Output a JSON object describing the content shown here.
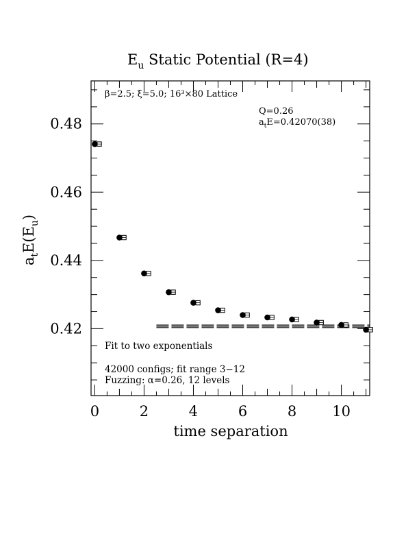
{
  "chart_data": {
    "type": "scatter",
    "title": "E_u Static Potential (R=4)",
    "title_main": "E",
    "title_sub": "u",
    "title_rest": " Static Potential (R=4)",
    "xlabel": "time separation",
    "ylabel": "a_t E(E_u)",
    "ylabel_parts": {
      "a": "a",
      "t": "t",
      "E": "E(E",
      "u": "u",
      "close": ")"
    },
    "xlim": [
      -0.15,
      11.15
    ],
    "ylim": [
      0.4004,
      0.4926
    ],
    "xticks": [
      0,
      2,
      4,
      6,
      8,
      10
    ],
    "xtick_labels": [
      "0",
      "2",
      "4",
      "6",
      "8",
      "10"
    ],
    "yticks": [
      0.42,
      0.44,
      0.46,
      0.48
    ],
    "ytick_labels": [
      "0.42",
      "0.44",
      "0.46",
      "0.48"
    ],
    "grid": false,
    "series": [
      {
        "marker": "filled-circle",
        "x": [
          0,
          1,
          2,
          3,
          4,
          5,
          6,
          7,
          8,
          9,
          10,
          11
        ],
        "y": [
          0.4741,
          0.4467,
          0.4362,
          0.4307,
          0.4276,
          0.4254,
          0.424,
          0.4233,
          0.4227,
          0.4218,
          0.4211,
          0.4197
        ]
      },
      {
        "marker": "open-square",
        "x": [
          0.1,
          1.1,
          2.1,
          3.1,
          4.1,
          5.1,
          6.1,
          7.1,
          8.1,
          9.1,
          10.1,
          11.1
        ],
        "y": [
          0.4741,
          0.4467,
          0.4362,
          0.4307,
          0.4276,
          0.4254,
          0.424,
          0.4233,
          0.4227,
          0.4218,
          0.4211,
          0.4197
        ]
      }
    ],
    "fit": {
      "x_range": [
        2.5,
        11.15
      ],
      "value": 0.4207,
      "error": 0.00038
    },
    "annotations": {
      "lattice": "β=2.5; ξ=5.0; 16³×80 Lattice",
      "q_value": "Q=0.26",
      "energy_prefix": "a",
      "energy_sub": "t",
      "energy_rest": "E=0.42070(38)",
      "fit_desc": "Fit to two exponentials",
      "configs": "42000 configs; fit range 3−12",
      "fuzzing": "Fuzzing: α=0.26, 12 levels"
    }
  }
}
